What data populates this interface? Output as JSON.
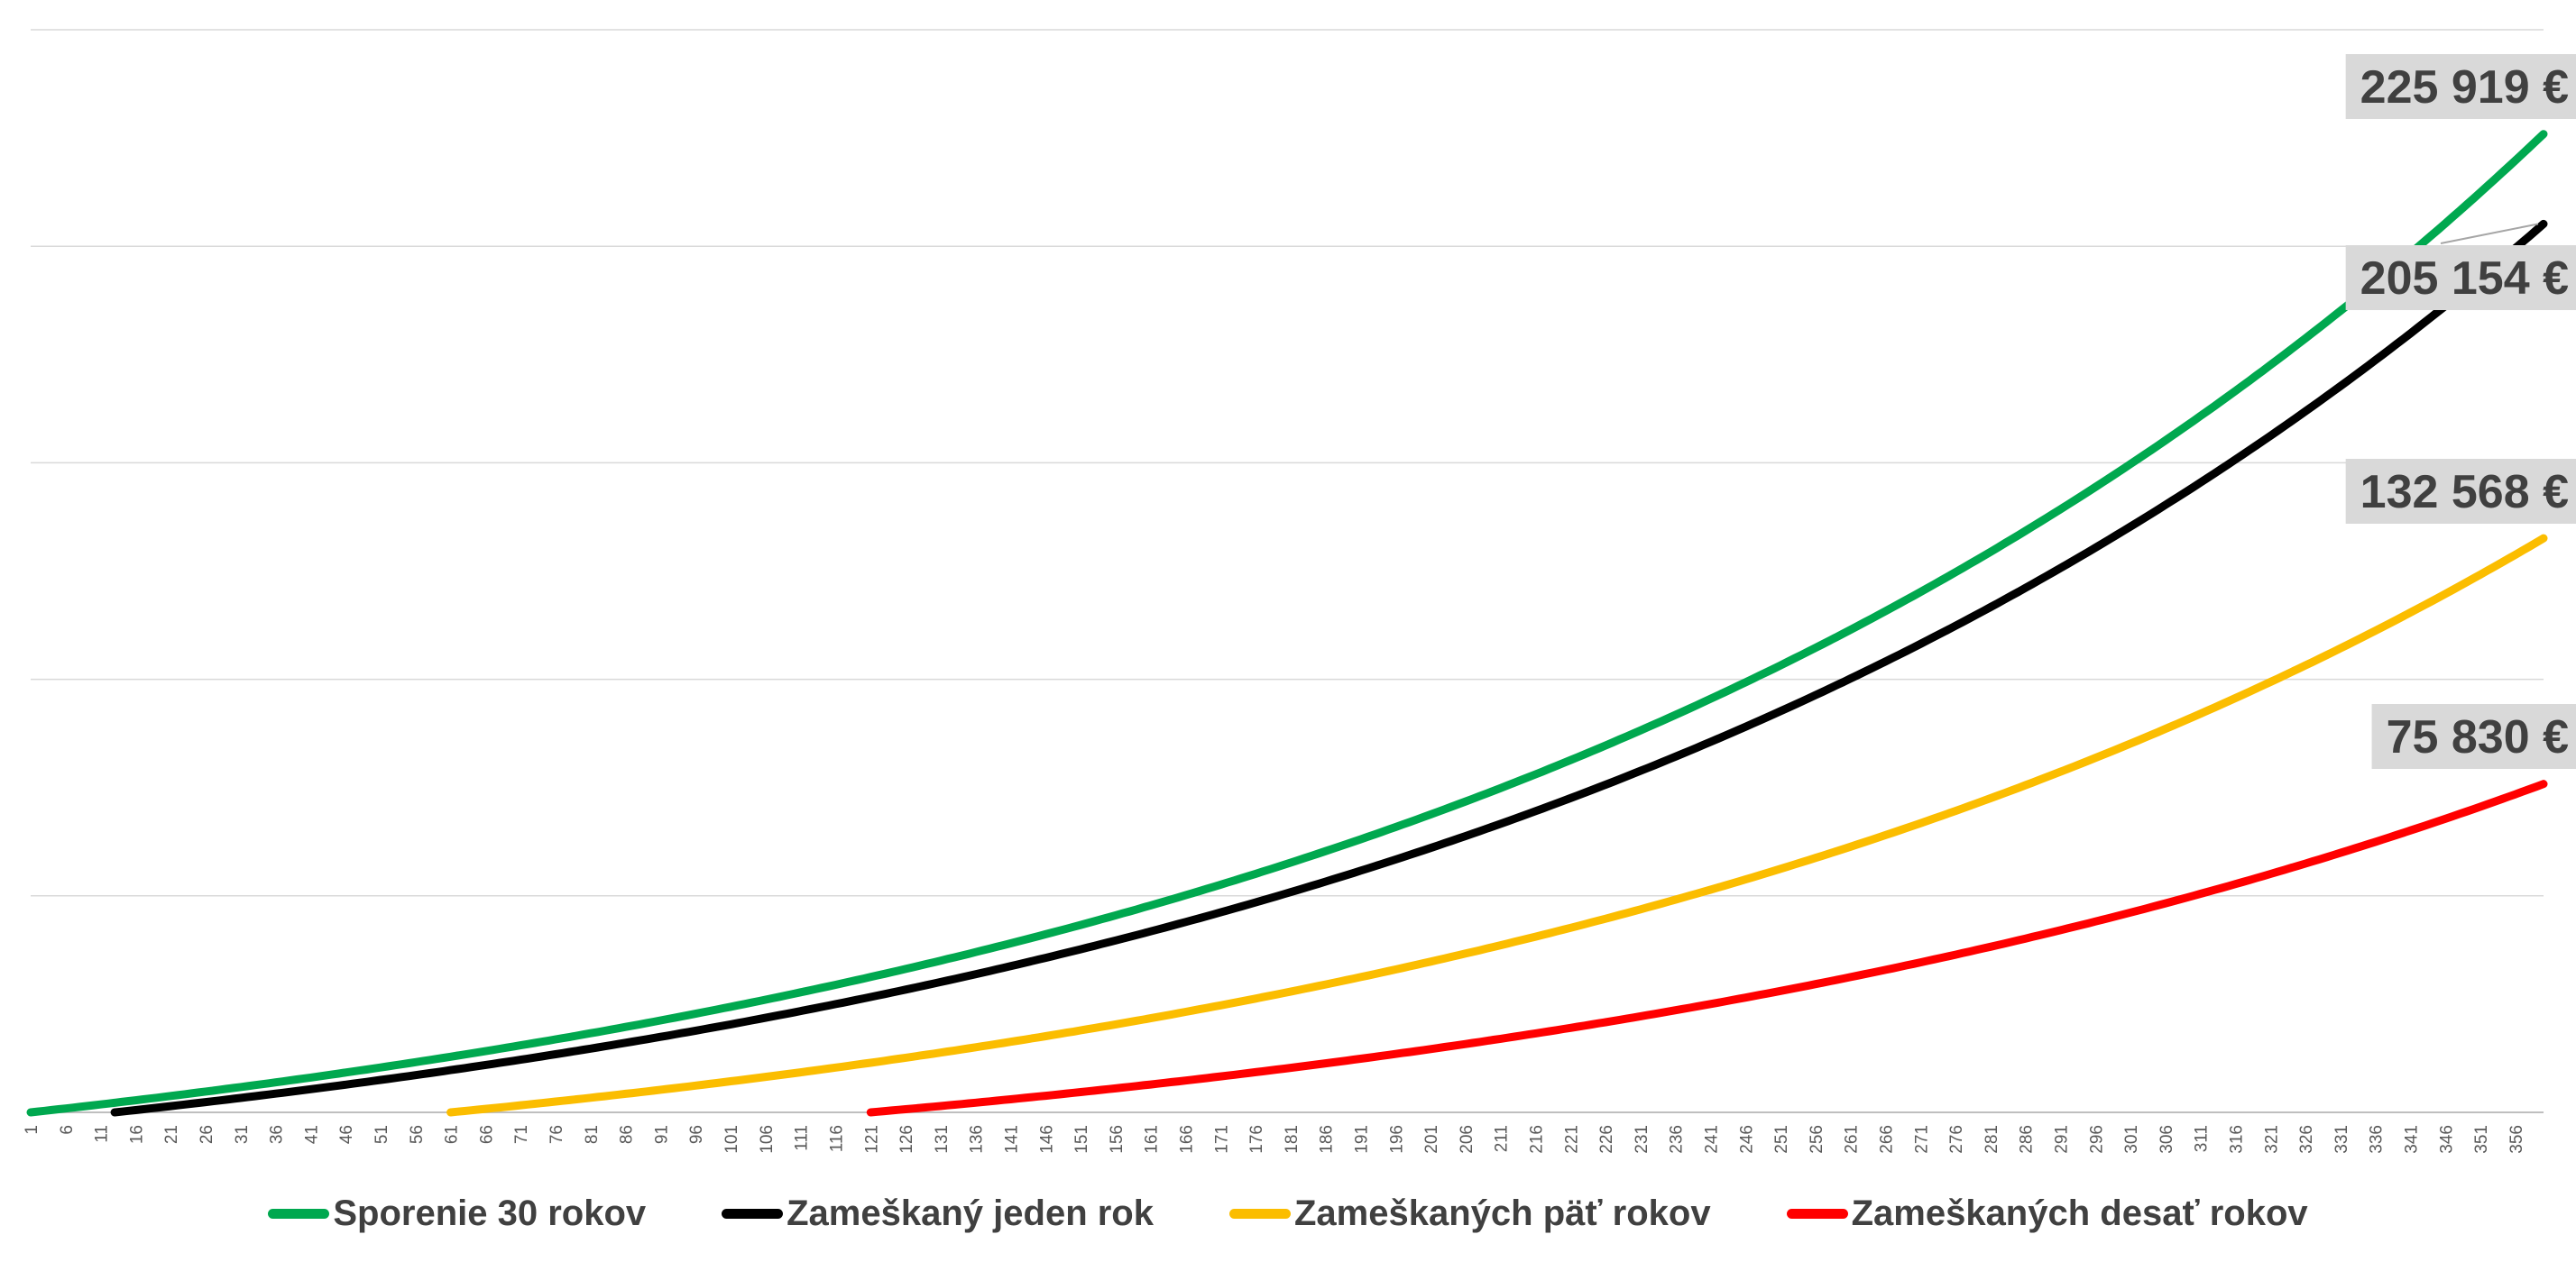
{
  "chart_data": {
    "type": "line",
    "x_start": 1,
    "x_end": 360,
    "x_tick_step": 5,
    "y_range": [
      0,
      250000
    ],
    "grid": "horizontal",
    "legend_position": "bottom",
    "series": [
      {
        "name": "Sporenie 30 rokov",
        "color": "#00a84f",
        "start_month": 1,
        "end_value": 225919,
        "end_label": "225 919 €"
      },
      {
        "name": "Zameškaný jeden rok",
        "color": "#000000",
        "start_month": 13,
        "end_value": 205154,
        "end_label": "205 154 €"
      },
      {
        "name": "Zameškaných päť rokov",
        "color": "#fbbd00",
        "start_month": 61,
        "end_value": 132568,
        "end_label": "132 568 €"
      },
      {
        "name": "Zameškaných desať rokov",
        "color": "#ff0000",
        "start_month": 121,
        "end_value": 75830,
        "end_label": "75 830 €"
      }
    ]
  }
}
